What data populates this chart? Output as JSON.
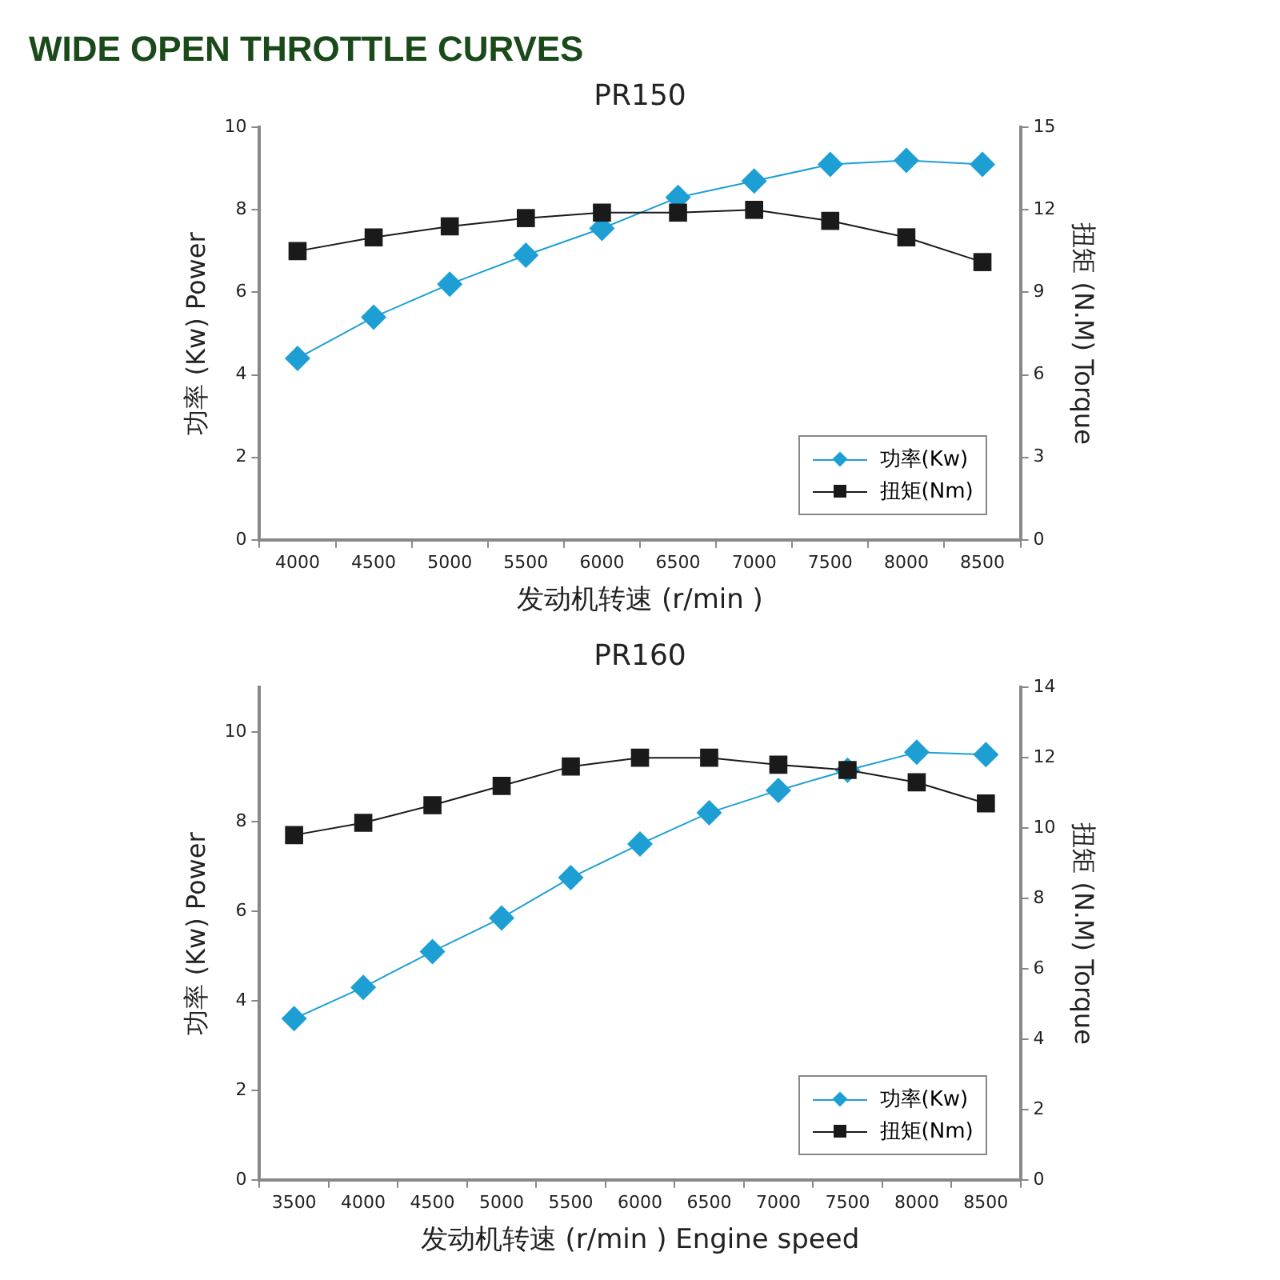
{
  "chart_data": [
    {
      "type": "line",
      "title": "PR150",
      "annotations": [
        "WIDE OPEN THROTTLE CURVES"
      ],
      "xlabel": "发动机转速 (r/min )",
      "ylabel": "功率 (Kw) Power",
      "y2label": "扭矩 (N.M) Torque",
      "categories": [
        "4000",
        "4500",
        "5000",
        "5500",
        "6000",
        "6500",
        "7000",
        "7500",
        "8000",
        "8500"
      ],
      "series": [
        {
          "name": "功率(Kw)",
          "color": "#1e9fd4",
          "marker": "diamond",
          "values": [
            4.4,
            5.4,
            6.2,
            6.9,
            7.55,
            8.3,
            8.7,
            9.1,
            9.2,
            9.1
          ]
        },
        {
          "name": "扭矩(Nm)",
          "color": "#1a1a1a",
          "marker": "square",
          "axis": "y2",
          "values": [
            10.5,
            11.0,
            11.4,
            11.7,
            11.9,
            11.9,
            12.0,
            11.6,
            11.0,
            10.1
          ]
        }
      ],
      "ylim": [
        0,
        10
      ],
      "yticks": [
        0,
        2,
        4,
        6,
        8,
        10
      ],
      "y2lim": [
        0,
        15
      ],
      "y2ticks": [
        0,
        3,
        6,
        9,
        12,
        15
      ],
      "legend": "bottom right"
    },
    {
      "type": "line",
      "title": "PR160",
      "xlabel": "发动机转速 (r/min ) Engine speed",
      "ylabel": "功率 (Kw) Power",
      "y2label": "扭矩 (N.M) Torque",
      "categories": [
        "3500",
        "4000",
        "4500",
        "5000",
        "5500",
        "6000",
        "6500",
        "7000",
        "7500",
        "8000",
        "8500"
      ],
      "series": [
        {
          "name": "功率(Kw)",
          "color": "#1e9fd4",
          "marker": "diamond",
          "values": [
            3.6,
            4.3,
            5.1,
            5.85,
            6.75,
            7.5,
            8.2,
            8.7,
            9.15,
            9.55,
            9.5
          ]
        },
        {
          "name": "扭矩(Nm)",
          "color": "#1a1a1a",
          "marker": "square",
          "axis": "y2",
          "values": [
            9.8,
            10.15,
            10.65,
            11.2,
            11.75,
            12.0,
            12.0,
            11.8,
            11.65,
            11.3,
            10.7
          ]
        }
      ],
      "ylim": [
        0,
        11
      ],
      "yticks": [
        0,
        2,
        4,
        6,
        8,
        10
      ],
      "y2lim": [
        0,
        14
      ],
      "y2ticks": [
        0,
        2,
        4,
        6,
        8,
        10,
        12,
        14
      ],
      "legend": "bottom right"
    }
  ]
}
